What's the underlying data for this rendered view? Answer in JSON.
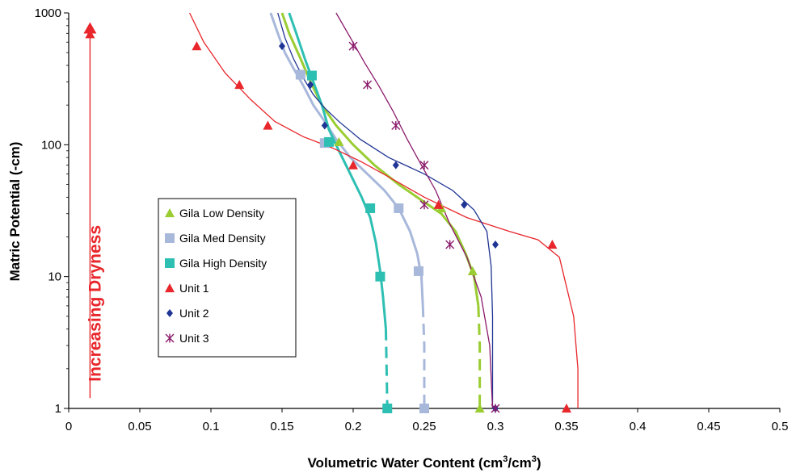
{
  "chart_data": {
    "type": "scatter",
    "title": "",
    "xlabel": "Volumetric Water Content (cm",
    "xlabel_sup1": "3",
    "xlabel_mid": "/cm",
    "xlabel_sup2": "3",
    "xlabel_end": ")",
    "ylabel": "Matric Potential (-cm)",
    "xlim": [
      0,
      0.5
    ],
    "ylim": [
      1,
      1000
    ],
    "y_scale": "log",
    "grid": false,
    "legend_position": "center-left",
    "x_ticks": [
      0,
      0.05,
      0.1,
      0.15,
      0.2,
      0.25,
      0.3,
      0.35,
      0.4,
      0.45,
      0.5
    ],
    "x_tick_labels": [
      "0",
      "0.05",
      "0.1",
      "0.15",
      "0.2",
      "0.25",
      "0.3",
      "0.35",
      "0.4",
      "0.45",
      "0.5"
    ],
    "y_ticks": [
      1,
      10,
      100,
      1000
    ],
    "y_tick_labels": [
      "1",
      "10",
      "100",
      "1000"
    ],
    "annotation": {
      "text": "Increasing Dryness",
      "color": "#e8262b",
      "arrow_x": 0.015,
      "arrow_y_from": 1.2,
      "arrow_y_to": 760
    },
    "series": [
      {
        "name": "Gila Low Density",
        "marker": "triangle",
        "color": "#9acd32",
        "points": [
          [
            0.19,
            105
          ],
          [
            0.262,
            33
          ],
          [
            0.284,
            11
          ],
          [
            0.289,
            1
          ]
        ],
        "curve": [
          [
            0.15,
            1000
          ],
          [
            0.155,
            700
          ],
          [
            0.163,
            450
          ],
          [
            0.17,
            300
          ],
          [
            0.178,
            200
          ],
          [
            0.188,
            140
          ],
          [
            0.2,
            100
          ],
          [
            0.215,
            70
          ],
          [
            0.232,
            50
          ],
          [
            0.248,
            38
          ],
          [
            0.262,
            30
          ],
          [
            0.272,
            22
          ],
          [
            0.279,
            15
          ],
          [
            0.285,
            10
          ],
          [
            0.288,
            6
          ],
          [
            0.289,
            3
          ],
          [
            0.289,
            1
          ]
        ],
        "dashed_tail_from": 3.5
      },
      {
        "name": "Gila Med Density",
        "marker": "square",
        "color": "#a8b8db",
        "points": [
          [
            0.163,
            340
          ],
          [
            0.18,
            103
          ],
          [
            0.232,
            33
          ],
          [
            0.246,
            11
          ],
          [
            0.25,
            1
          ]
        ],
        "curve": [
          [
            0.142,
            1000
          ],
          [
            0.147,
            700
          ],
          [
            0.152,
            500
          ],
          [
            0.158,
            380
          ],
          [
            0.165,
            280
          ],
          [
            0.172,
            200
          ],
          [
            0.18,
            150
          ],
          [
            0.188,
            110
          ],
          [
            0.198,
            80
          ],
          [
            0.21,
            60
          ],
          [
            0.222,
            45
          ],
          [
            0.232,
            33
          ],
          [
            0.24,
            22
          ],
          [
            0.245,
            15
          ],
          [
            0.248,
            10
          ],
          [
            0.249,
            6
          ],
          [
            0.25,
            3
          ],
          [
            0.25,
            1
          ]
        ],
        "dashed_tail_from": 3.5
      },
      {
        "name": "Gila High Density",
        "marker": "square",
        "color": "#2ebfb3",
        "points": [
          [
            0.171,
            335
          ],
          [
            0.183,
            105
          ],
          [
            0.212,
            33
          ],
          [
            0.219,
            10
          ],
          [
            0.224,
            1
          ]
        ],
        "curve": [
          [
            0.155,
            1000
          ],
          [
            0.16,
            700
          ],
          [
            0.166,
            450
          ],
          [
            0.172,
            300
          ],
          [
            0.178,
            200
          ],
          [
            0.183,
            130
          ],
          [
            0.19,
            90
          ],
          [
            0.198,
            60
          ],
          [
            0.206,
            40
          ],
          [
            0.212,
            28
          ],
          [
            0.216,
            18
          ],
          [
            0.219,
            11
          ],
          [
            0.221,
            7
          ],
          [
            0.223,
            4
          ],
          [
            0.224,
            1
          ]
        ],
        "dashed_tail_from": 3.5
      },
      {
        "name": "Unit 1",
        "marker": "triangle",
        "color": "#e8262b",
        "points": [
          [
            0.015,
            690
          ],
          [
            0.09,
            560
          ],
          [
            0.12,
            285
          ],
          [
            0.14,
            140
          ],
          [
            0.2,
            70
          ],
          [
            0.26,
            35
          ],
          [
            0.34,
            17.5
          ],
          [
            0.35,
            1
          ]
        ],
        "curve": [
          [
            0.085,
            1000
          ],
          [
            0.095,
            600
          ],
          [
            0.11,
            350
          ],
          [
            0.128,
            220
          ],
          [
            0.145,
            150
          ],
          [
            0.165,
            115
          ],
          [
            0.185,
            95
          ],
          [
            0.205,
            75
          ],
          [
            0.225,
            57
          ],
          [
            0.25,
            40
          ],
          [
            0.28,
            28
          ],
          [
            0.31,
            22
          ],
          [
            0.33,
            19
          ],
          [
            0.345,
            14
          ],
          [
            0.355,
            5
          ],
          [
            0.358,
            2
          ],
          [
            0.358,
            1
          ]
        ]
      },
      {
        "name": "Unit 2",
        "marker": "diamond",
        "color": "#1f3494",
        "points": [
          [
            0.15,
            560
          ],
          [
            0.17,
            285
          ],
          [
            0.18,
            140
          ],
          [
            0.23,
            70
          ],
          [
            0.278,
            35
          ],
          [
            0.3,
            17.5
          ],
          [
            0.3,
            1
          ]
        ],
        "curve": [
          [
            0.147,
            1000
          ],
          [
            0.152,
            650
          ],
          [
            0.158,
            450
          ],
          [
            0.165,
            320
          ],
          [
            0.172,
            240
          ],
          [
            0.18,
            190
          ],
          [
            0.19,
            150
          ],
          [
            0.205,
            110
          ],
          [
            0.225,
            80
          ],
          [
            0.25,
            60
          ],
          [
            0.27,
            45
          ],
          [
            0.285,
            32
          ],
          [
            0.294,
            22
          ],
          [
            0.297,
            12
          ],
          [
            0.298,
            5
          ],
          [
            0.298,
            1
          ]
        ]
      },
      {
        "name": "Unit 3",
        "marker": "asterisk",
        "color": "#8b1a6b",
        "points": [
          [
            0.2,
            560
          ],
          [
            0.21,
            285
          ],
          [
            0.23,
            140
          ],
          [
            0.25,
            70
          ],
          [
            0.25,
            35
          ],
          [
            0.268,
            17.5
          ],
          [
            0.3,
            1
          ]
        ],
        "curve": [
          [
            0.188,
            1000
          ],
          [
            0.198,
            650
          ],
          [
            0.208,
            420
          ],
          [
            0.218,
            280
          ],
          [
            0.228,
            180
          ],
          [
            0.238,
            110
          ],
          [
            0.248,
            70
          ],
          [
            0.258,
            45
          ],
          [
            0.268,
            25
          ],
          [
            0.28,
            14
          ],
          [
            0.29,
            7
          ],
          [
            0.296,
            3
          ],
          [
            0.298,
            1
          ]
        ]
      }
    ]
  }
}
